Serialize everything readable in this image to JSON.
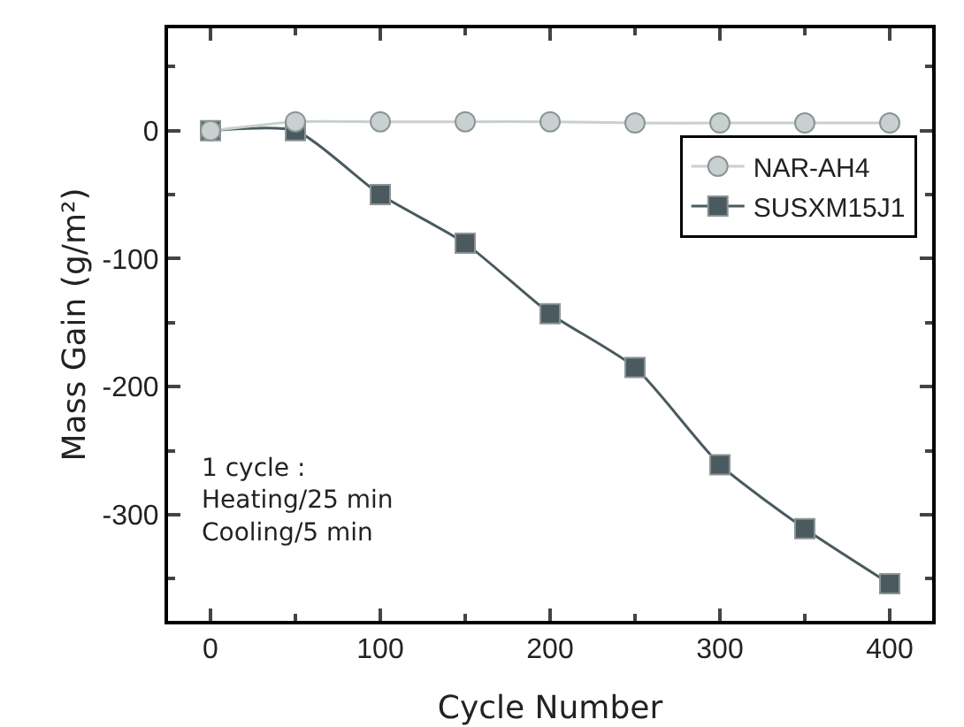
{
  "chart_data": {
    "type": "line",
    "xlabel": "Cycle Number",
    "ylabel": "Mass Gain (g/m²)",
    "x": [
      0,
      50,
      100,
      150,
      200,
      250,
      300,
      350,
      400
    ],
    "series": [
      {
        "name": "NAR-AH4",
        "color": "#c8d0d0",
        "marker": "circle",
        "values": [
          0,
          7,
          7,
          7,
          7,
          6,
          6,
          6,
          6
        ]
      },
      {
        "name": "SUSXM15J1",
        "color": "#4a5a5e",
        "marker": "square",
        "values": [
          0,
          0,
          -50,
          -88,
          -143,
          -185,
          -261,
          -311,
          -354
        ]
      }
    ],
    "xlim": [
      -25,
      425
    ],
    "xticks": [
      0,
      100,
      200,
      300,
      400
    ],
    "ylim": [
      -383,
      80
    ],
    "yticks": [
      0,
      -100,
      -200,
      -300
    ],
    "grid": false,
    "legend": "top right",
    "annotations": [
      "1 cycle :\nHeating/25 min\nCooling/5 min"
    ]
  }
}
